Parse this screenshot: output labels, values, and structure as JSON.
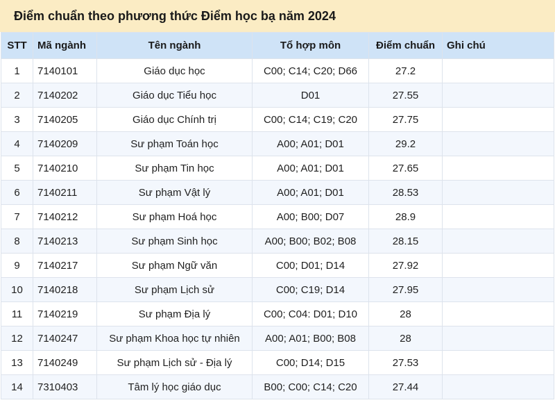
{
  "title": "Điểm chuẩn theo phương thức Điểm học bạ năm 2024",
  "headers": {
    "stt": "STT",
    "ma_nganh": "Mã ngành",
    "ten_nganh": "Tên ngành",
    "to_hop_mon": "Tổ hợp môn",
    "diem_chuan": "Điểm chuẩn",
    "ghi_chu": "Ghi chú"
  },
  "rows": [
    {
      "stt": "1",
      "ma_nganh": "7140101",
      "ten_nganh": "Giáo dục học",
      "to_hop_mon": "C00; C14; C20; D66",
      "diem_chuan": "27.2",
      "ghi_chu": ""
    },
    {
      "stt": "2",
      "ma_nganh": "7140202",
      "ten_nganh": "Giáo dục Tiểu học",
      "to_hop_mon": "D01",
      "diem_chuan": "27.55",
      "ghi_chu": ""
    },
    {
      "stt": "3",
      "ma_nganh": "7140205",
      "ten_nganh": "Giáo dục Chính trị",
      "to_hop_mon": "C00; C14; C19; C20",
      "diem_chuan": "27.75",
      "ghi_chu": ""
    },
    {
      "stt": "4",
      "ma_nganh": "7140209",
      "ten_nganh": "Sư phạm Toán học",
      "to_hop_mon": "A00; A01; D01",
      "diem_chuan": "29.2",
      "ghi_chu": ""
    },
    {
      "stt": "5",
      "ma_nganh": "7140210",
      "ten_nganh": "Sư phạm Tin học",
      "to_hop_mon": "A00; A01; D01",
      "diem_chuan": "27.65",
      "ghi_chu": ""
    },
    {
      "stt": "6",
      "ma_nganh": "7140211",
      "ten_nganh": "Sư phạm Vật lý",
      "to_hop_mon": "A00; A01; D01",
      "diem_chuan": "28.53",
      "ghi_chu": ""
    },
    {
      "stt": "7",
      "ma_nganh": "7140212",
      "ten_nganh": "Sư phạm Hoá học",
      "to_hop_mon": "A00; B00; D07",
      "diem_chuan": "28.9",
      "ghi_chu": ""
    },
    {
      "stt": "8",
      "ma_nganh": "7140213",
      "ten_nganh": "Sư phạm Sinh học",
      "to_hop_mon": "A00; B00; B02; B08",
      "diem_chuan": "28.15",
      "ghi_chu": ""
    },
    {
      "stt": "9",
      "ma_nganh": "7140217",
      "ten_nganh": "Sư phạm Ngữ văn",
      "to_hop_mon": "C00; D01; D14",
      "diem_chuan": "27.92",
      "ghi_chu": ""
    },
    {
      "stt": "10",
      "ma_nganh": "7140218",
      "ten_nganh": "Sư phạm Lịch sử",
      "to_hop_mon": "C00; C19; D14",
      "diem_chuan": "27.95",
      "ghi_chu": ""
    },
    {
      "stt": "11",
      "ma_nganh": "7140219",
      "ten_nganh": "Sư phạm Địa lý",
      "to_hop_mon": "C00; C04: D01; D10",
      "diem_chuan": "28",
      "ghi_chu": ""
    },
    {
      "stt": "12",
      "ma_nganh": "7140247",
      "ten_nganh": "Sư phạm Khoa học tự nhiên",
      "to_hop_mon": "A00; A01; B00; B08",
      "diem_chuan": "28",
      "ghi_chu": ""
    },
    {
      "stt": "13",
      "ma_nganh": "7140249",
      "ten_nganh": "Sư phạm Lịch sử - Địa lý",
      "to_hop_mon": "C00; D14; D15",
      "diem_chuan": "27.53",
      "ghi_chu": ""
    },
    {
      "stt": "14",
      "ma_nganh": "7310403",
      "ten_nganh": "Tâm lý học giáo dục",
      "to_hop_mon": "B00; C00; C14; C20",
      "diem_chuan": "27.44",
      "ghi_chu": ""
    }
  ]
}
